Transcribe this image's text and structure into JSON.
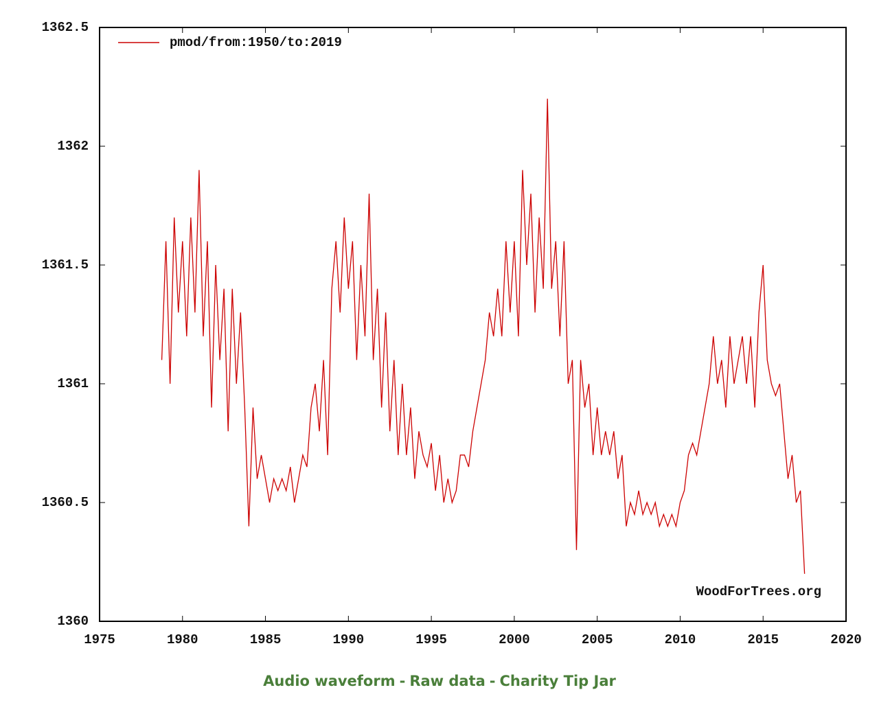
{
  "chart_data": {
    "type": "line",
    "x": [
      1978.75,
      1979,
      1979.25,
      1979.5,
      1979.75,
      1980,
      1980.25,
      1980.5,
      1980.75,
      1981,
      1981.25,
      1981.5,
      1981.75,
      1982,
      1982.25,
      1982.5,
      1982.75,
      1983,
      1983.25,
      1983.5,
      1983.75,
      1984,
      1984.25,
      1984.5,
      1984.75,
      1985,
      1985.25,
      1985.5,
      1985.75,
      1986,
      1986.25,
      1986.5,
      1986.75,
      1987,
      1987.25,
      1987.5,
      1987.75,
      1988,
      1988.25,
      1988.5,
      1988.75,
      1989,
      1989.25,
      1989.5,
      1989.75,
      1990,
      1990.25,
      1990.5,
      1990.75,
      1991,
      1991.25,
      1991.5,
      1991.75,
      1992,
      1992.25,
      1992.5,
      1992.75,
      1993,
      1993.25,
      1993.5,
      1993.75,
      1994,
      1994.25,
      1994.5,
      1994.75,
      1995,
      1995.25,
      1995.5,
      1995.75,
      1996,
      1996.25,
      1996.5,
      1996.75,
      1997,
      1997.25,
      1997.5,
      1997.75,
      1998,
      1998.25,
      1998.5,
      1998.75,
      1999,
      1999.25,
      1999.5,
      1999.75,
      2000,
      2000.25,
      2000.5,
      2000.75,
      2001,
      2001.25,
      2001.5,
      2001.75,
      2002,
      2002.25,
      2002.5,
      2002.75,
      2003,
      2003.25,
      2003.5,
      2003.75,
      2004,
      2004.25,
      2004.5,
      2004.75,
      2005,
      2005.25,
      2005.5,
      2005.75,
      2006,
      2006.25,
      2006.5,
      2006.75,
      2007,
      2007.25,
      2007.5,
      2007.75,
      2008,
      2008.25,
      2008.5,
      2008.75,
      2009,
      2009.25,
      2009.5,
      2009.75,
      2010,
      2010.25,
      2010.5,
      2010.75,
      2011,
      2011.25,
      2011.5,
      2011.75,
      2012,
      2012.25,
      2012.5,
      2012.75,
      2013,
      2013.25,
      2013.5,
      2013.75,
      2014,
      2014.25,
      2014.5,
      2014.75,
      2015,
      2015.25,
      2015.5,
      2015.75,
      2016,
      2016.25,
      2016.5,
      2016.75,
      2017,
      2017.25,
      2017.5
    ],
    "series": [
      {
        "name": "pmod/from:1950/to:2019",
        "color": "#cc0000",
        "values": [
          1361.1,
          1361.6,
          1361.0,
          1361.7,
          1361.3,
          1361.6,
          1361.2,
          1361.7,
          1361.3,
          1361.9,
          1361.2,
          1361.6,
          1360.9,
          1361.5,
          1361.1,
          1361.4,
          1360.8,
          1361.4,
          1361.0,
          1361.3,
          1360.9,
          1360.4,
          1360.9,
          1360.6,
          1360.7,
          1360.6,
          1360.5,
          1360.6,
          1360.55,
          1360.6,
          1360.55,
          1360.65,
          1360.5,
          1360.6,
          1360.7,
          1360.65,
          1360.9,
          1361.0,
          1360.8,
          1361.1,
          1360.7,
          1361.4,
          1361.6,
          1361.3,
          1361.7,
          1361.4,
          1361.6,
          1361.1,
          1361.5,
          1361.2,
          1361.8,
          1361.1,
          1361.4,
          1360.9,
          1361.3,
          1360.8,
          1361.1,
          1360.7,
          1361.0,
          1360.7,
          1360.9,
          1360.6,
          1360.8,
          1360.7,
          1360.65,
          1360.75,
          1360.55,
          1360.7,
          1360.5,
          1360.6,
          1360.5,
          1360.55,
          1360.7,
          1360.7,
          1360.65,
          1360.8,
          1360.9,
          1361.0,
          1361.1,
          1361.3,
          1361.2,
          1361.4,
          1361.2,
          1361.6,
          1361.3,
          1361.6,
          1361.2,
          1361.9,
          1361.5,
          1361.8,
          1361.3,
          1361.7,
          1361.4,
          1362.2,
          1361.4,
          1361.6,
          1361.2,
          1361.6,
          1361.0,
          1361.1,
          1360.3,
          1361.1,
          1360.9,
          1361.0,
          1360.7,
          1360.9,
          1360.7,
          1360.8,
          1360.7,
          1360.8,
          1360.6,
          1360.7,
          1360.4,
          1360.5,
          1360.45,
          1360.55,
          1360.45,
          1360.5,
          1360.45,
          1360.5,
          1360.4,
          1360.45,
          1360.4,
          1360.45,
          1360.4,
          1360.5,
          1360.55,
          1360.7,
          1360.75,
          1360.7,
          1360.8,
          1360.9,
          1361.0,
          1361.2,
          1361.0,
          1361.1,
          1360.9,
          1361.2,
          1361.0,
          1361.1,
          1361.2,
          1361.0,
          1361.2,
          1360.9,
          1361.3,
          1361.5,
          1361.1,
          1361.0,
          1360.95,
          1361.0,
          1360.8,
          1360.6,
          1360.7,
          1360.5,
          1360.55,
          1360.2
        ]
      }
    ],
    "xlim": [
      1975,
      2020
    ],
    "xticks": [
      1975,
      1980,
      1985,
      1990,
      1995,
      2000,
      2005,
      2010,
      2015,
      2020
    ],
    "ylim": [
      1360,
      1362.5
    ],
    "yticks": [
      1360,
      1360.5,
      1361,
      1361.5,
      1362,
      1362.5
    ],
    "grid": false,
    "legend": "upper left",
    "annotation": "WoodForTrees.org"
  },
  "footer_links": [
    "Audio waveform",
    "Raw data",
    "Charity Tip Jar"
  ],
  "footer_separator": "-"
}
